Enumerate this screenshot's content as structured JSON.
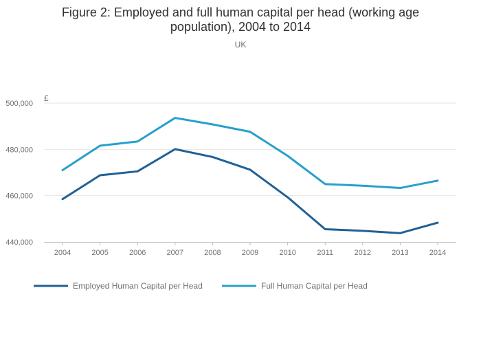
{
  "chart_data": {
    "type": "line",
    "title": "Figure 2: Employed and full human capital per head (working age population), 2004 to 2014",
    "subtitle": "UK",
    "ylabel": "£",
    "xlabel": "",
    "x": [
      "2004",
      "2005",
      "2006",
      "2007",
      "2008",
      "2009",
      "2010",
      "2011",
      "2012",
      "2013",
      "2014"
    ],
    "ylim": [
      440000,
      500000
    ],
    "yticks": [
      440000,
      460000,
      480000,
      500000
    ],
    "ytick_labels": [
      "440,000",
      "460,000",
      "480,000",
      "500,000"
    ],
    "grid": true,
    "legend_position": "bottom-left",
    "series": [
      {
        "name": "Employed Human Capital per Head",
        "color": "#206095",
        "values": [
          458500,
          468800,
          470500,
          480100,
          476700,
          471200,
          459300,
          445500,
          444800,
          443800,
          448300
        ]
      },
      {
        "name": "Full Human Capital per Head",
        "color": "#27a0cc",
        "values": [
          471000,
          481600,
          483400,
          493600,
          490800,
          487600,
          477200,
          465000,
          464300,
          463300,
          466500
        ]
      }
    ]
  }
}
